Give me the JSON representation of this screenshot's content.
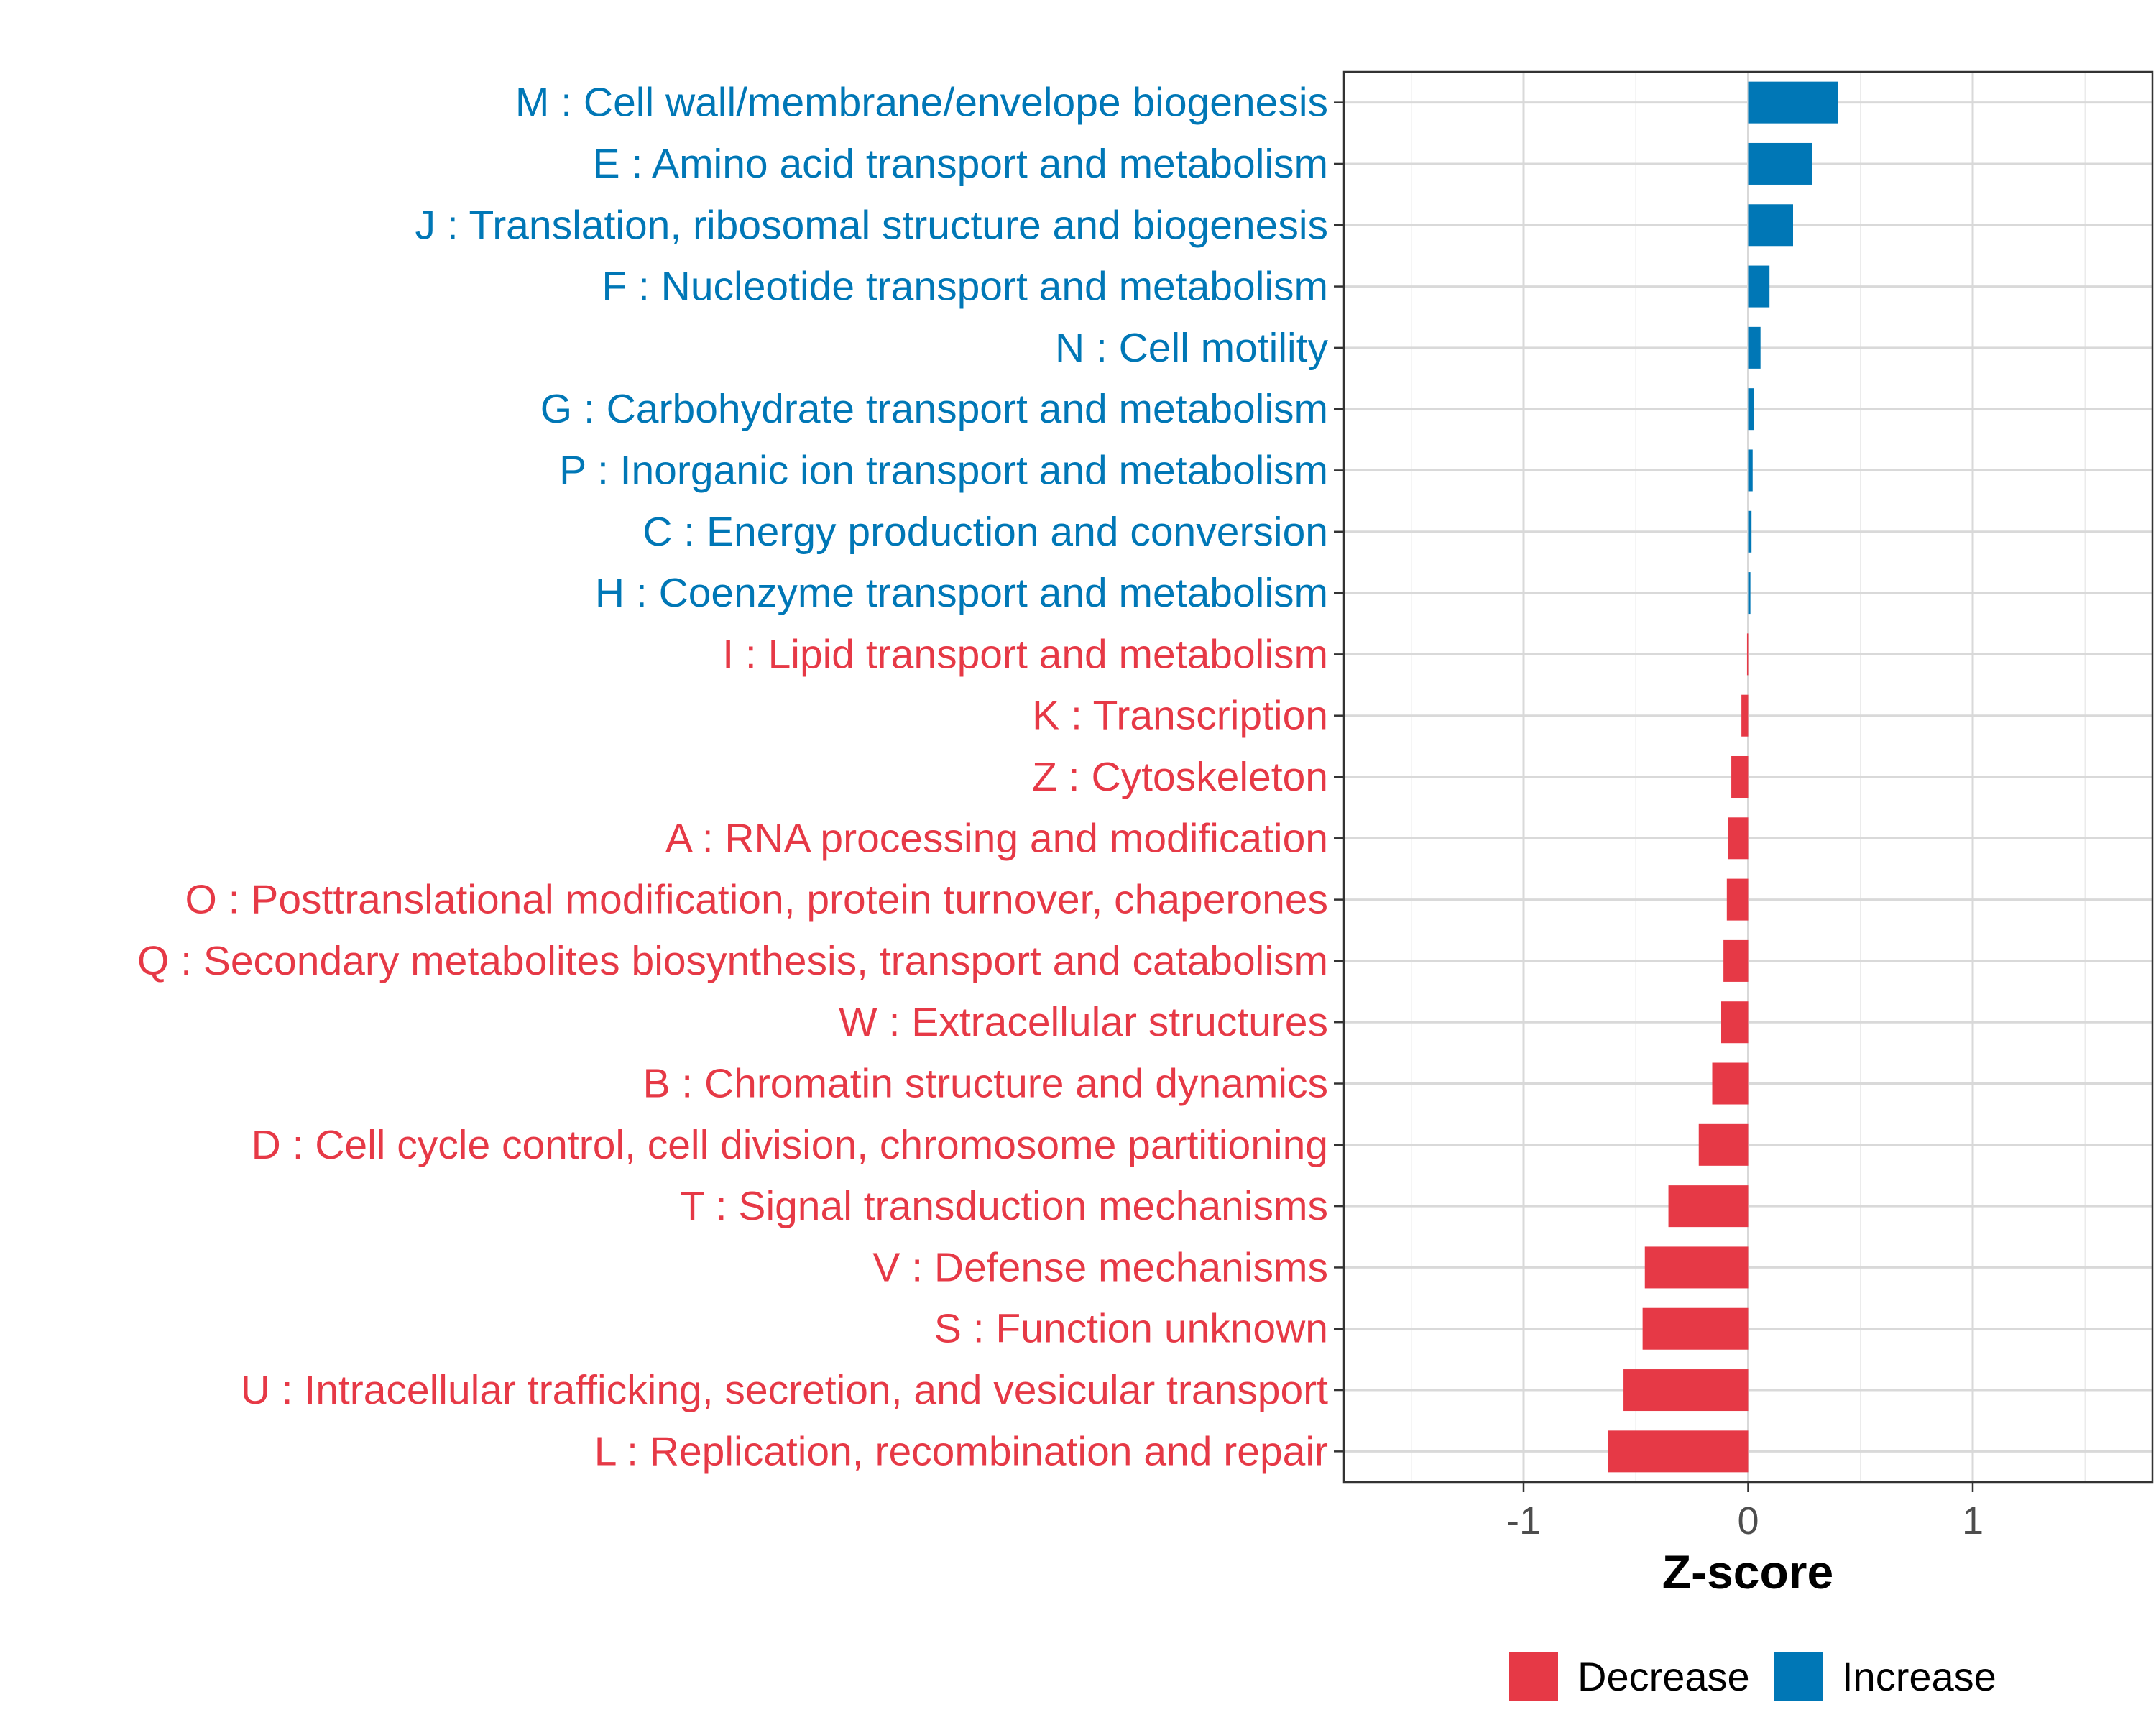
{
  "chart_data": {
    "type": "bar",
    "orientation": "horizontal",
    "title": "",
    "xlabel": "Z-score",
    "ylabel": "",
    "xlim": [
      -1.8,
      1.8
    ],
    "xticks": [
      -1,
      0,
      1
    ],
    "xtick_labels": [
      "-1",
      "0",
      "1"
    ],
    "grid": true,
    "legend_position": "bottom",
    "colors": {
      "Decrease": "#e63946",
      "Increase": "#0077b6"
    },
    "legend": [
      {
        "name": "Decrease",
        "color": "#e63946"
      },
      {
        "name": "Increase",
        "color": "#0077b6"
      }
    ],
    "categories": [
      "M : Cell wall/membrane/envelope biogenesis",
      "E : Amino acid transport and metabolism",
      "J : Translation, ribosomal structure and biogenesis",
      "F : Nucleotide transport and metabolism",
      "N : Cell motility",
      "G : Carbohydrate transport and metabolism",
      "P : Inorganic ion transport and metabolism",
      "C : Energy production and conversion",
      "H : Coenzyme transport and metabolism",
      "I : Lipid transport and metabolism",
      "K : Transcription",
      "Z : Cytoskeleton",
      "A : RNA processing and modification",
      "O : Posttranslational modification, protein turnover, chaperones",
      "Q : Secondary metabolites biosynthesis, transport and catabolism",
      "W : Extracellular structures",
      "B : Chromatin structure and dynamics",
      "D : Cell cycle control, cell division, chromosome partitioning",
      "T : Signal transduction mechanisms",
      "V : Defense mechanisms",
      "S : Function unknown",
      "U : Intracellular trafficking, secretion, and vesicular transport",
      "L : Replication, recombination and repair"
    ],
    "values": [
      0.4,
      0.285,
      0.2,
      0.095,
      0.055,
      0.025,
      0.02,
      0.015,
      0.01,
      -0.005,
      -0.03,
      -0.075,
      -0.09,
      -0.095,
      -0.11,
      -0.12,
      -0.16,
      -0.22,
      -0.355,
      -0.46,
      -0.47,
      -0.555,
      -0.625
    ],
    "groups": [
      "Increase",
      "Increase",
      "Increase",
      "Increase",
      "Increase",
      "Increase",
      "Increase",
      "Increase",
      "Increase",
      "Decrease",
      "Decrease",
      "Decrease",
      "Decrease",
      "Decrease",
      "Decrease",
      "Decrease",
      "Decrease",
      "Decrease",
      "Decrease",
      "Decrease",
      "Decrease",
      "Decrease",
      "Decrease"
    ]
  }
}
